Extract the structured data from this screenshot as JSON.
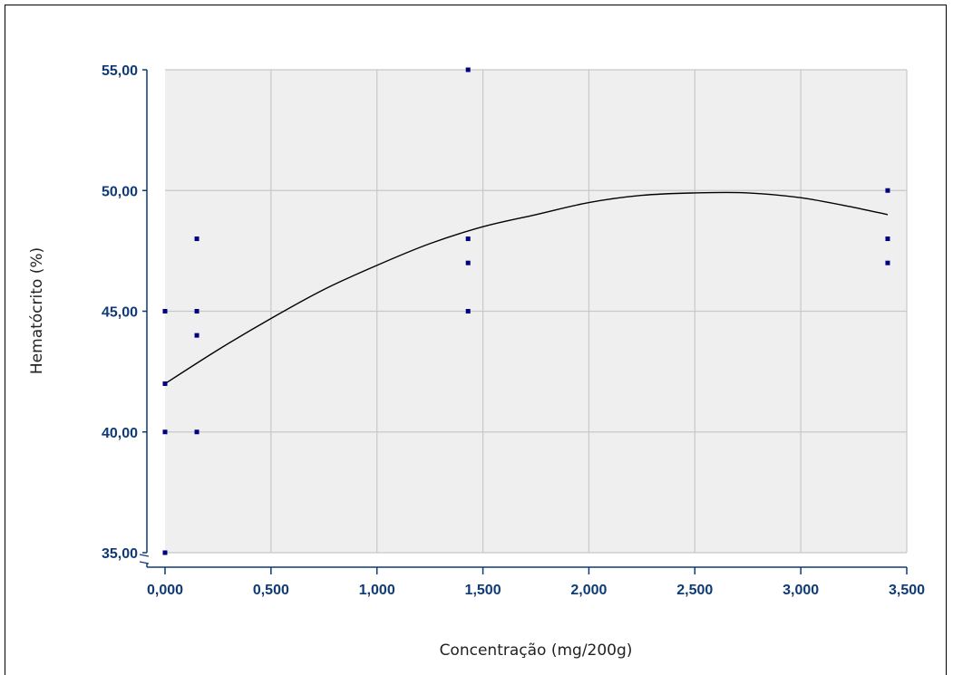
{
  "chart_data": {
    "type": "scatter",
    "title": "",
    "xlabel": "Concentração (mg/200g)",
    "ylabel": "Hematócrito (%)",
    "xlim": [
      0,
      3.5
    ],
    "ylim": [
      35,
      55
    ],
    "x_ticks": [
      "0,000",
      "0,500",
      "1,000",
      "1,500",
      "2,000",
      "2,500",
      "3,000",
      "3,500"
    ],
    "y_ticks": [
      "35,00",
      "40,00",
      "45,00",
      "50,00",
      "55,00"
    ],
    "x_tick_values": [
      0,
      0.5,
      1.0,
      1.5,
      2.0,
      2.5,
      3.0,
      3.5
    ],
    "y_tick_values": [
      35,
      40,
      45,
      50,
      55
    ],
    "axis_break_y": true,
    "grid": true,
    "series": [
      {
        "kind": "points",
        "color": "#00007f",
        "points": [
          {
            "x": 0.0,
            "y": 45
          },
          {
            "x": 0.0,
            "y": 42
          },
          {
            "x": 0.0,
            "y": 40
          },
          {
            "x": 0.0,
            "y": 35
          },
          {
            "x": 0.15,
            "y": 48
          },
          {
            "x": 0.15,
            "y": 45
          },
          {
            "x": 0.15,
            "y": 44
          },
          {
            "x": 0.15,
            "y": 40
          },
          {
            "x": 1.43,
            "y": 55
          },
          {
            "x": 1.43,
            "y": 48
          },
          {
            "x": 1.43,
            "y": 47
          },
          {
            "x": 1.43,
            "y": 45
          },
          {
            "x": 3.41,
            "y": 50
          },
          {
            "x": 3.41,
            "y": 48
          },
          {
            "x": 3.41,
            "y": 47
          }
        ]
      },
      {
        "kind": "trend",
        "color": "#000000",
        "x": [
          0.0,
          0.25,
          0.5,
          0.75,
          1.0,
          1.25,
          1.5,
          1.75,
          2.0,
          2.25,
          2.5,
          2.75,
          3.0,
          3.25,
          3.41
        ],
        "y": [
          42.0,
          43.4,
          44.7,
          45.9,
          46.9,
          47.8,
          48.5,
          49.0,
          49.5,
          49.8,
          49.9,
          49.9,
          49.7,
          49.3,
          49.0
        ]
      }
    ],
    "colors": {
      "plot_background": "#efefef",
      "grid": "#c8c8c8",
      "axis": "#0e3a75",
      "tick_label": "#0e3a75",
      "axis_title": "#222222",
      "marker": "#00007f",
      "trend": "#000000"
    }
  }
}
